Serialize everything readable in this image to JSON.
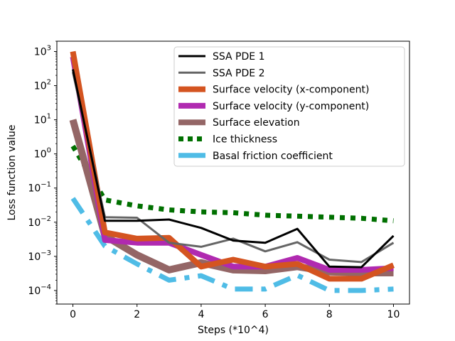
{
  "chart_data": {
    "type": "line",
    "xlabel": "Steps (*10^4)",
    "ylabel": "Loss function value",
    "x_ticks": [
      0,
      2,
      4,
      6,
      8,
      10
    ],
    "y_scale": "log",
    "y_ticks": [
      {
        "value": 0.0001,
        "base": "10",
        "exp": "−4"
      },
      {
        "value": 0.001,
        "base": "10",
        "exp": "−3"
      },
      {
        "value": 0.01,
        "base": "10",
        "exp": "−2"
      },
      {
        "value": 0.1,
        "base": "10",
        "exp": "−1"
      },
      {
        "value": 1,
        "base": "10",
        "exp": "0"
      },
      {
        "value": 10,
        "base": "10",
        "exp": "1"
      },
      {
        "value": 100,
        "base": "10",
        "exp": "2"
      },
      {
        "value": 1000,
        "base": "10",
        "exp": "3"
      }
    ],
    "xlim": [
      -0.5,
      10.5
    ],
    "ylim": [
      4e-05,
      2000
    ],
    "grid": false,
    "legend_position": "top-right",
    "x": [
      0,
      1,
      2,
      3,
      4,
      5,
      6,
      7,
      8,
      9,
      10
    ],
    "series": [
      {
        "name": "Basal friction coefficient",
        "color": "#4fbce6",
        "style": "dashdot",
        "values": [
          0.05,
          0.002,
          0.0006,
          0.0002,
          0.00027,
          0.00011,
          0.00011,
          0.00028,
          0.0001,
          0.0001,
          0.00011
        ]
      },
      {
        "name": "Ice thickness",
        "color": "#007000",
        "style": "dotted",
        "values": [
          1.7,
          0.045,
          0.03,
          0.023,
          0.02,
          0.019,
          0.016,
          0.015,
          0.014,
          0.013,
          0.011
        ]
      },
      {
        "name": "Surface elevation",
        "color": "#946666",
        "style": "solid",
        "values": [
          10,
          0.004,
          0.0011,
          0.0004,
          0.00065,
          0.0004,
          0.00038,
          0.0005,
          0.00035,
          0.00033,
          0.00033
        ]
      },
      {
        "name": "Surface velocity (y-component)",
        "color": "#b02ab0",
        "style": "solid",
        "values": [
          700,
          0.003,
          0.0025,
          0.0025,
          0.0011,
          0.0005,
          0.0005,
          0.0009,
          0.0004,
          0.0004,
          0.00045
        ]
      },
      {
        "name": "Surface velocity (x-component)",
        "color": "#d45420",
        "style": "solid",
        "values": [
          1000,
          0.005,
          0.0033,
          0.0035,
          0.0005,
          0.0008,
          0.0005,
          0.0006,
          0.00022,
          0.00022,
          0.00055
        ]
      },
      {
        "name": "SSA PDE 2",
        "color": "#656565",
        "style": "solid",
        "values": [
          250,
          0.014,
          0.0135,
          0.0025,
          0.0019,
          0.0033,
          0.0014,
          0.0026,
          0.0008,
          0.00068,
          0.0025
        ]
      },
      {
        "name": "SSA PDE 1",
        "color": "#000000",
        "style": "solid",
        "values": [
          300,
          0.011,
          0.011,
          0.012,
          0.0068,
          0.0029,
          0.0025,
          0.0064,
          0.0005,
          0.00048,
          0.004
        ]
      }
    ],
    "legend": [
      "SSA PDE 1",
      "SSA PDE 2",
      "Surface velocity (x-component)",
      "Surface velocity (y-component)",
      "Surface elevation",
      "Ice thickness",
      "Basal friction coefficient"
    ]
  }
}
